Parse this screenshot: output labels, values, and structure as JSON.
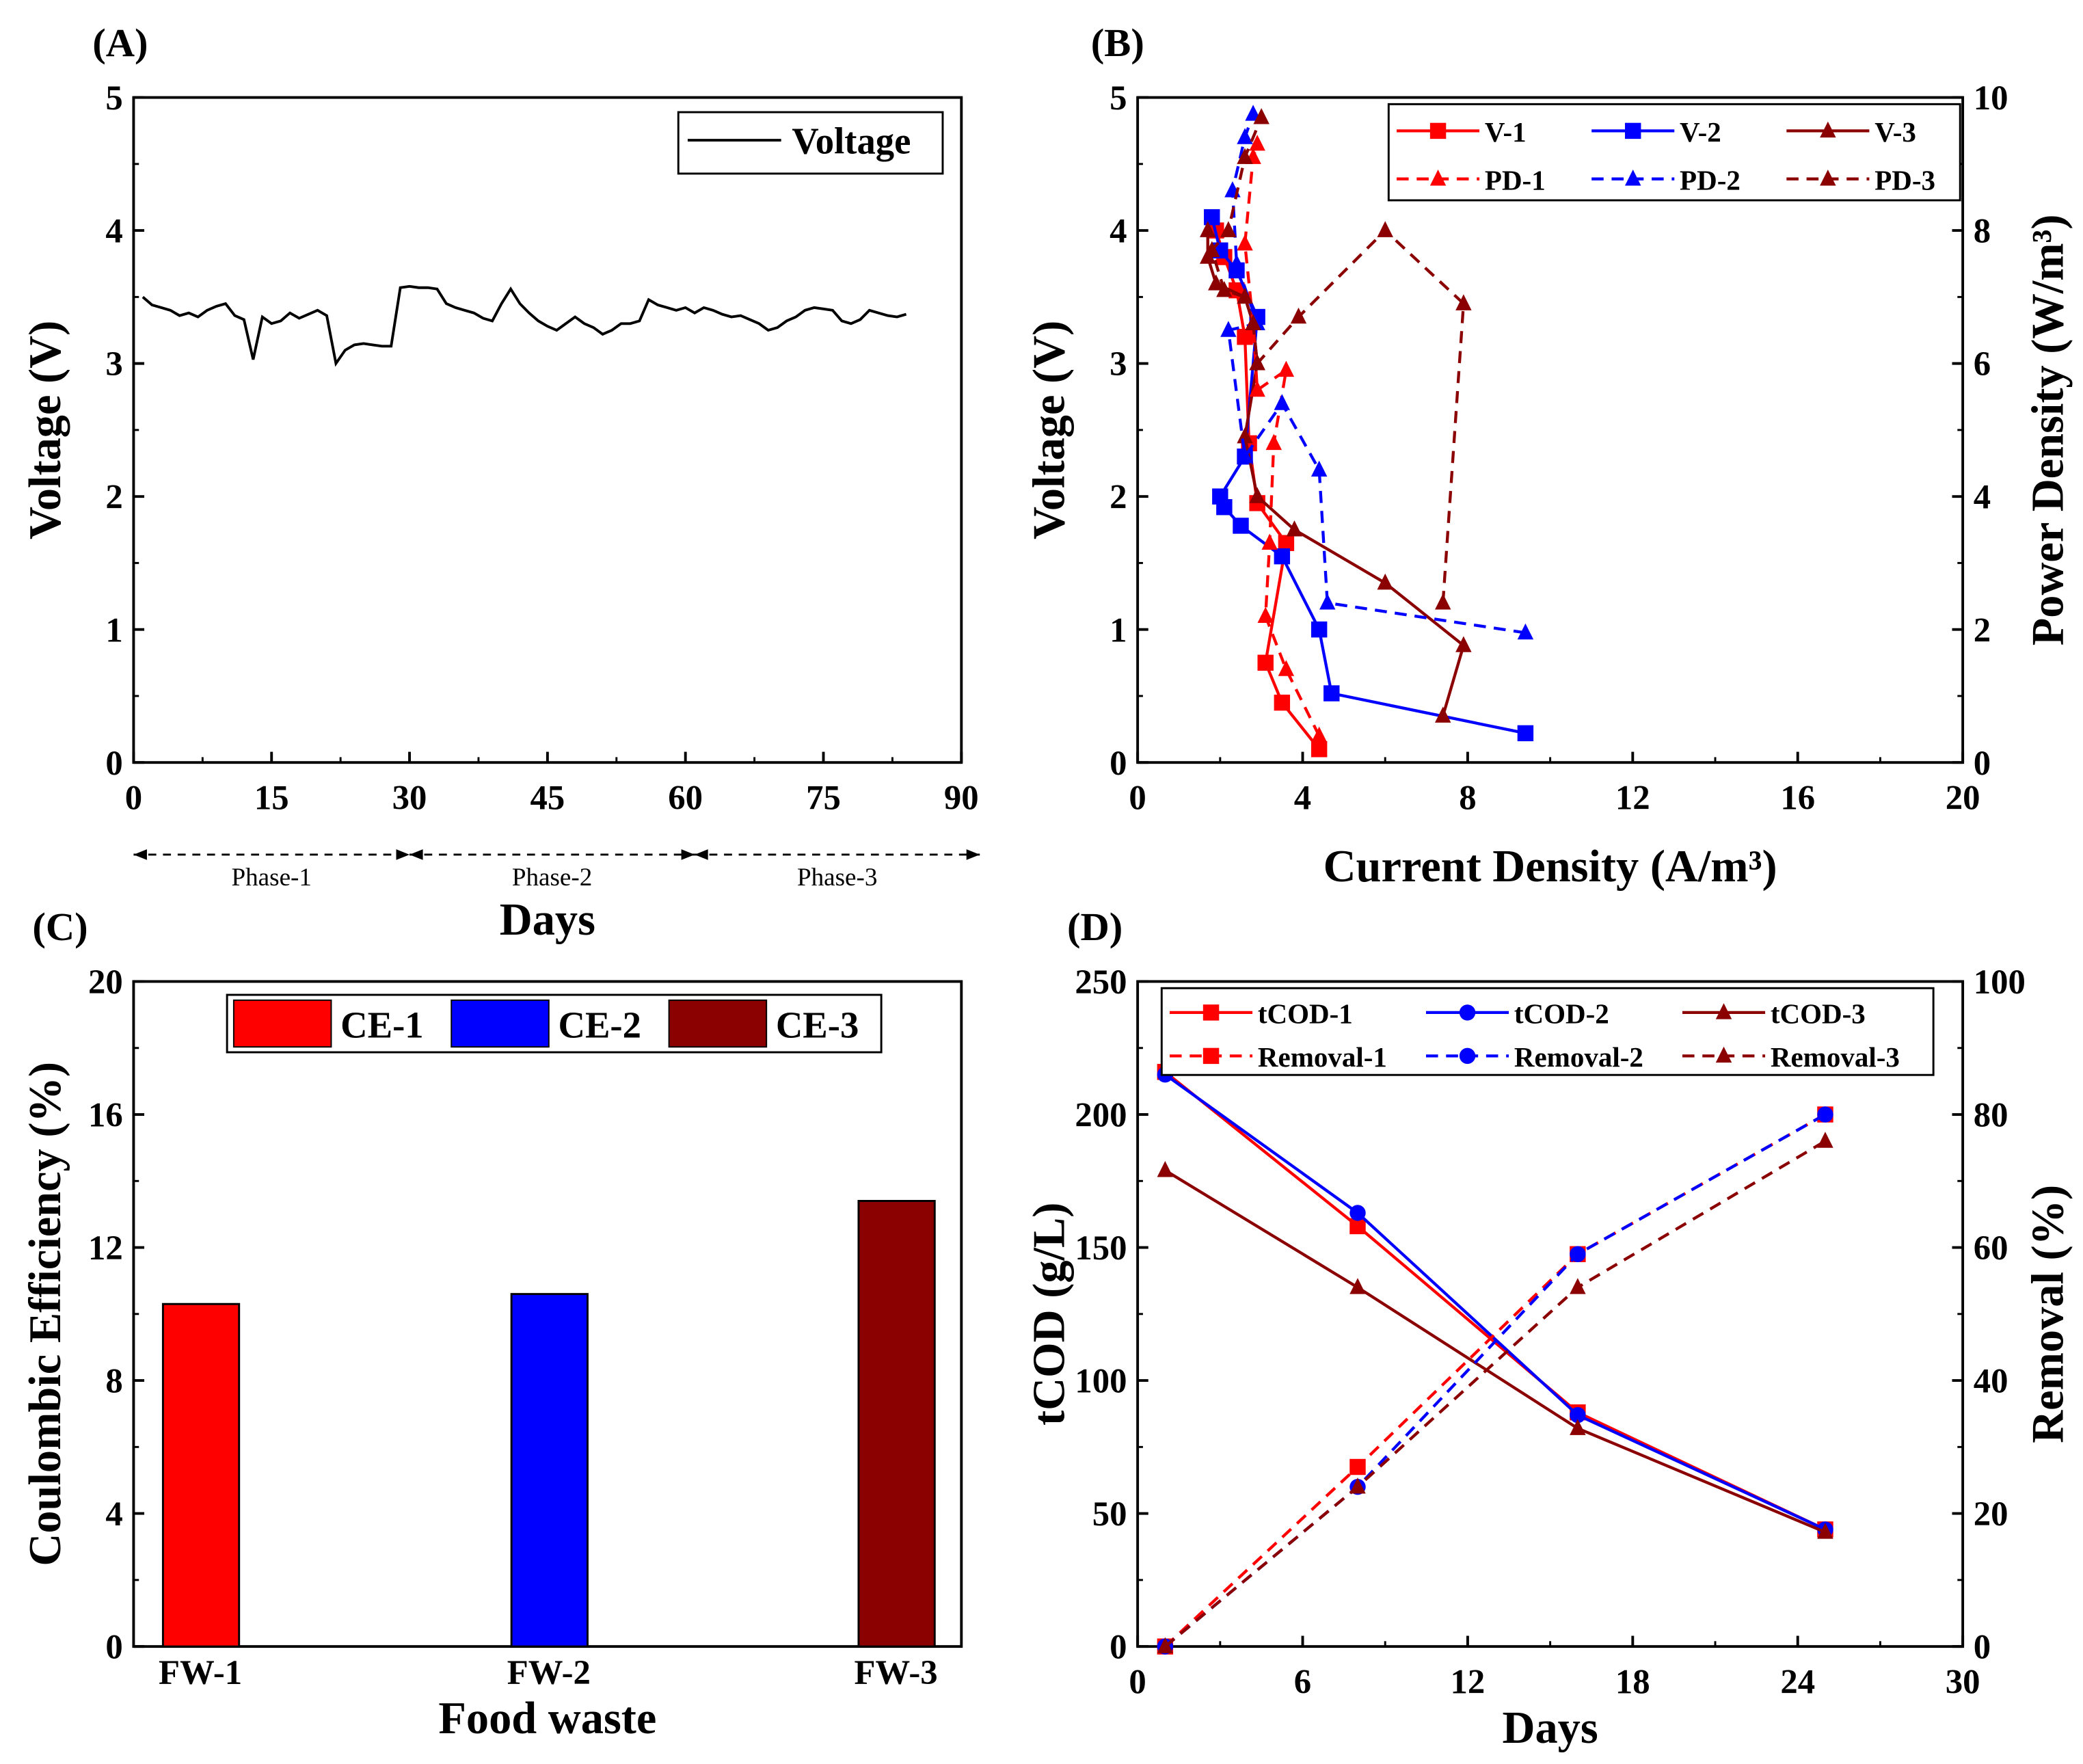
{
  "chart_data": [
    {
      "panel": "(A)",
      "type": "line",
      "xlabel": "Days",
      "ylabel": "Voltage (V)",
      "xlim": [
        0,
        90
      ],
      "ylim": [
        0,
        5
      ],
      "xticks": [
        0,
        15,
        30,
        45,
        60,
        75,
        90
      ],
      "yticks": [
        0,
        1,
        2,
        3,
        4,
        5
      ],
      "phases": [
        {
          "label": "Phase-1",
          "range": [
            0,
            30
          ]
        },
        {
          "label": "Phase-2",
          "range": [
            30,
            61
          ]
        },
        {
          "label": "Phase-3",
          "range": [
            61,
            92
          ]
        }
      ],
      "series": [
        {
          "name": "Voltage",
          "color": "#000000",
          "x": [
            1,
            2,
            3,
            4,
            5,
            6,
            7,
            8,
            9,
            10,
            11,
            12,
            13,
            14,
            15,
            16,
            17,
            18,
            19,
            20,
            21,
            22,
            23,
            24,
            25,
            26,
            27,
            28,
            29,
            30,
            31,
            32,
            33,
            34,
            35,
            36,
            37,
            38,
            39,
            40,
            41,
            42,
            43,
            44,
            45,
            46,
            47,
            48,
            49,
            50,
            51,
            52,
            53,
            54,
            55,
            56,
            57,
            58,
            59,
            60,
            61,
            62,
            63,
            64,
            65,
            66,
            67,
            68,
            69,
            70,
            71,
            72,
            73,
            74,
            75,
            76,
            77,
            78,
            79,
            80,
            81,
            82,
            83,
            84
          ],
          "y": [
            3.5,
            3.44,
            3.42,
            3.4,
            3.36,
            3.38,
            3.35,
            3.4,
            3.43,
            3.45,
            3.36,
            3.33,
            3.03,
            3.35,
            3.3,
            3.32,
            3.38,
            3.34,
            3.37,
            3.4,
            3.36,
            3.0,
            3.1,
            3.14,
            3.15,
            3.14,
            3.13,
            3.13,
            3.57,
            3.58,
            3.57,
            3.57,
            3.56,
            3.45,
            3.42,
            3.4,
            3.38,
            3.34,
            3.32,
            3.45,
            3.56,
            3.45,
            3.38,
            3.32,
            3.28,
            3.25,
            3.3,
            3.35,
            3.3,
            3.27,
            3.22,
            3.25,
            3.3,
            3.3,
            3.32,
            3.48,
            3.44,
            3.42,
            3.4,
            3.42,
            3.38,
            3.42,
            3.4,
            3.37,
            3.35,
            3.36,
            3.33,
            3.3,
            3.25,
            3.27,
            3.32,
            3.35,
            3.4,
            3.42,
            3.41,
            3.4,
            3.32,
            3.3,
            3.33,
            3.4,
            3.38,
            3.36,
            3.35,
            3.37
          ]
        }
      ]
    },
    {
      "panel": "(B)",
      "type": "line",
      "xlabel": "Current Density (A/m³)",
      "ylabel": "Voltage (V)",
      "y2label": "Power Density (W/m³)",
      "xlim": [
        0,
        20
      ],
      "ylim": [
        0,
        5
      ],
      "y2lim": [
        0,
        10
      ],
      "xticks": [
        0,
        4,
        8,
        12,
        16,
        20
      ],
      "yticks": [
        0,
        1,
        2,
        3,
        4,
        5
      ],
      "y2ticks": [
        0,
        2,
        4,
        6,
        8,
        10
      ],
      "legend": "top-right",
      "series": [
        {
          "name": "V-1",
          "axis": "left",
          "color": "#ff0000",
          "dash": false,
          "marker": "square",
          "x": [
            4.4,
            3.5,
            3.1,
            3.6,
            2.9,
            2.7,
            2.6,
            2.4,
            2.1,
            1.9
          ],
          "y": [
            0.1,
            0.45,
            0.75,
            1.65,
            1.95,
            2.4,
            3.2,
            3.55,
            3.8,
            4.0
          ]
        },
        {
          "name": "V-2",
          "axis": "left",
          "color": "#0000ff",
          "dash": false,
          "marker": "square",
          "x": [
            9.4,
            4.7,
            4.4,
            3.5,
            2.5,
            2.1,
            2.0,
            2.6,
            2.9,
            2.4,
            2.0,
            1.8
          ],
          "y": [
            0.22,
            0.52,
            1.0,
            1.55,
            1.78,
            1.92,
            2.0,
            2.3,
            3.35,
            3.7,
            3.85,
            4.1
          ]
        },
        {
          "name": "V-3",
          "axis": "left",
          "color": "#8b0000",
          "dash": false,
          "marker": "triangle",
          "x": [
            7.4,
            7.9,
            6.0,
            3.8,
            2.9,
            2.6,
            2.9,
            2.8,
            2.6,
            1.9,
            1.7,
            1.7
          ],
          "y": [
            0.35,
            0.88,
            1.35,
            1.75,
            2.0,
            2.45,
            3.0,
            3.3,
            3.5,
            3.6,
            3.8,
            4.0
          ]
        },
        {
          "name": "PD-1",
          "axis": "right",
          "color": "#ff0000",
          "dash": true,
          "marker": "triangle",
          "x": [
            4.4,
            3.6,
            3.1,
            3.2,
            3.3,
            3.6,
            2.9,
            2.8,
            2.6,
            2.8,
            2.9
          ],
          "y": [
            0.4,
            1.4,
            2.2,
            3.3,
            4.8,
            5.9,
            5.6,
            6.6,
            7.8,
            9.1,
            9.3
          ]
        },
        {
          "name": "PD-2",
          "axis": "right",
          "color": "#0000ff",
          "dash": true,
          "marker": "triangle",
          "x": [
            9.4,
            4.6,
            4.4,
            3.5,
            2.6,
            2.2,
            2.9,
            2.4,
            2.3,
            2.6,
            2.8
          ],
          "y": [
            1.95,
            2.4,
            4.4,
            5.4,
            4.6,
            6.5,
            6.6,
            7.5,
            8.6,
            9.4,
            9.75
          ]
        },
        {
          "name": "PD-3",
          "axis": "right",
          "color": "#8b0000",
          "dash": true,
          "marker": "triangle",
          "x": [
            7.4,
            7.9,
            6.0,
            3.9,
            2.9,
            2.8,
            2.6,
            2.1,
            1.8,
            2.2,
            2.6,
            3.0
          ],
          "y": [
            2.4,
            6.9,
            8.0,
            6.7,
            6.0,
            6.6,
            7.0,
            7.1,
            7.7,
            8.0,
            9.1,
            9.7
          ]
        }
      ]
    },
    {
      "panel": "(C)",
      "type": "bar",
      "xlabel": "Food waste",
      "ylabel": "Coulombic Efficiency (%)",
      "ylim": [
        0,
        20
      ],
      "yticks": [
        0,
        4,
        8,
        12,
        16,
        20
      ],
      "legend": "top",
      "categories": [
        "FW-1",
        "FW-2",
        "FW-3"
      ],
      "series": [
        {
          "name": "CE-1",
          "color": "#ff0000",
          "values": [
            10.3,
            null,
            null
          ]
        },
        {
          "name": "CE-2",
          "color": "#0000ff",
          "values": [
            null,
            10.6,
            null
          ]
        },
        {
          "name": "CE-3",
          "color": "#8b0000",
          "values": [
            null,
            null,
            13.4
          ]
        }
      ]
    },
    {
      "panel": "(D)",
      "type": "line",
      "xlabel": "Days",
      "ylabel": "tCOD (g/L)",
      "y2label": "Removal (%)",
      "xlim": [
        0,
        30
      ],
      "ylim": [
        0,
        250
      ],
      "y2lim": [
        0,
        100
      ],
      "xticks": [
        0,
        6,
        12,
        18,
        24,
        30
      ],
      "yticks": [
        0,
        50,
        100,
        150,
        200,
        250
      ],
      "y2ticks": [
        0,
        20,
        40,
        60,
        80,
        100
      ],
      "legend": "top",
      "series": [
        {
          "name": "tCOD-1",
          "axis": "left",
          "color": "#ff0000",
          "dash": false,
          "marker": "square",
          "x": [
            1,
            8,
            16,
            25
          ],
          "y": [
            216,
            158,
            88,
            44
          ]
        },
        {
          "name": "tCOD-2",
          "axis": "left",
          "color": "#0000ff",
          "dash": false,
          "marker": "circle",
          "x": [
            1,
            8,
            16,
            25
          ],
          "y": [
            215,
            163,
            87,
            44
          ]
        },
        {
          "name": "tCOD-3",
          "axis": "left",
          "color": "#8b0000",
          "dash": false,
          "marker": "triangle",
          "x": [
            1,
            8,
            16,
            25
          ],
          "y": [
            179,
            135,
            82,
            43
          ]
        },
        {
          "name": "Removal-1",
          "axis": "right",
          "color": "#ff0000",
          "dash": true,
          "marker": "square",
          "x": [
            1,
            8,
            16,
            25
          ],
          "y": [
            0,
            27,
            59,
            80
          ]
        },
        {
          "name": "Removal-2",
          "axis": "right",
          "color": "#0000ff",
          "dash": true,
          "marker": "circle",
          "x": [
            1,
            8,
            16,
            25
          ],
          "y": [
            0,
            24,
            59,
            80
          ]
        },
        {
          "name": "Removal-3",
          "axis": "right",
          "color": "#8b0000",
          "dash": true,
          "marker": "triangle",
          "x": [
            1,
            8,
            16,
            25
          ],
          "y": [
            0,
            24,
            54,
            76
          ]
        }
      ]
    }
  ]
}
